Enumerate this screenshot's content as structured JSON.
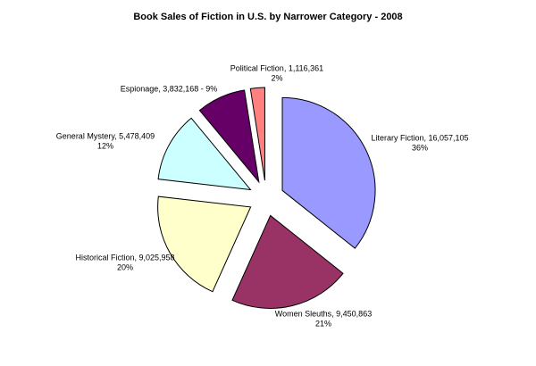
{
  "chart_data": {
    "type": "pie",
    "title": "Book Sales of Fiction in U.S. by Narrower Category - 2008",
    "values": [
      16057105,
      9450863,
      9025958,
      5478409,
      3832168,
      1116361
    ],
    "colors": [
      "#9999ff",
      "#993366",
      "#ffffcc",
      "#ccffff",
      "#660066",
      "#ff8080"
    ],
    "labels": [
      [
        "Literary Fiction, 16,057,105",
        "36%"
      ],
      [
        "Women Sleuths, 9,450,863",
        "21%"
      ],
      [
        "Historical Fiction, 9,025,958",
        "20%"
      ],
      [
        "General Mystery, 5,478,409",
        "12%"
      ],
      [
        "Espionage, 3,832,168 - 9%"
      ],
      [
        "Political Fiction, 1,116,361",
        "2%"
      ]
    ]
  }
}
